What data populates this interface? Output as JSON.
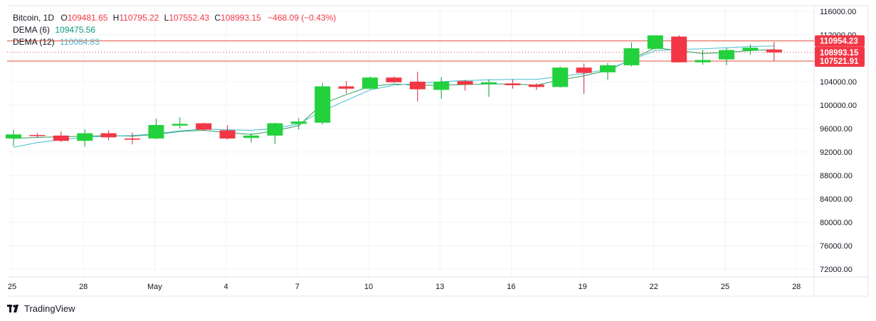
{
  "legend": {
    "symbol": "Bitcoin, 1D",
    "o_label": "O",
    "o_value": "109481.65",
    "h_label": "H",
    "h_value": "110795.22",
    "l_label": "L",
    "l_value": "107552.43",
    "c_label": "C",
    "c_value": "108993.15",
    "change": "−468.09 (−0.43%)",
    "dema6_label": "DEMA (6)",
    "dema6_value": "109475.56",
    "dema12_label": "DEMA (12)",
    "dema12_value": "110084.83"
  },
  "branding": {
    "logo_icon": "tradingview-logo-icon",
    "name": "TradingView"
  },
  "colors": {
    "up": "#22d13c",
    "down": "#f23645",
    "dema6": "#2e9c5b",
    "dema12": "#43bcd1",
    "hline": "#e0503a"
  },
  "chart_data": {
    "type": "candlestick",
    "title": "Bitcoin, 1D",
    "ylim": [
      68000,
      116000
    ],
    "y_ticks": [
      "116000.00",
      "112000.00",
      "108000.00",
      "104000.00",
      "100000.00",
      "96000.00",
      "92000.00",
      "88000.00",
      "84000.00",
      "80000.00",
      "76000.00",
      "72000.00"
    ],
    "x_ticks": [
      "25",
      "28",
      "May",
      "4",
      "7",
      "10",
      "13",
      "16",
      "19",
      "22",
      "25",
      "28"
    ],
    "x_tick_day_index": [
      0,
      3,
      6,
      9,
      12,
      15,
      18,
      21,
      24,
      27,
      30,
      33
    ],
    "price_labels": [
      "110954.23",
      "108993.15",
      "107521.91"
    ],
    "horizontal_lines": [
      110954.23,
      107521.91
    ],
    "last_price_line": 108993.15,
    "candles": [
      {
        "o": 94300,
        "h": 95800,
        "l": 93000,
        "c": 95000
      },
      {
        "o": 94900,
        "h": 95200,
        "l": 94400,
        "c": 94800
      },
      {
        "o": 94800,
        "h": 95500,
        "l": 93700,
        "c": 93900
      },
      {
        "o": 93900,
        "h": 95900,
        "l": 92900,
        "c": 95200
      },
      {
        "o": 95200,
        "h": 95700,
        "l": 94000,
        "c": 94500
      },
      {
        "o": 94300,
        "h": 95300,
        "l": 93300,
        "c": 94100
      },
      {
        "o": 94300,
        "h": 97700,
        "l": 94200,
        "c": 96600
      },
      {
        "o": 96500,
        "h": 97900,
        "l": 96000,
        "c": 96800
      },
      {
        "o": 96900,
        "h": 97000,
        "l": 95600,
        "c": 95800
      },
      {
        "o": 95700,
        "h": 96600,
        "l": 94100,
        "c": 94300
      },
      {
        "o": 94400,
        "h": 95200,
        "l": 93600,
        "c": 94800
      },
      {
        "o": 94800,
        "h": 97000,
        "l": 93400,
        "c": 96900
      },
      {
        "o": 96800,
        "h": 97800,
        "l": 95800,
        "c": 97200
      },
      {
        "o": 97000,
        "h": 103800,
        "l": 96700,
        "c": 103200
      },
      {
        "o": 103200,
        "h": 104100,
        "l": 102000,
        "c": 102800
      },
      {
        "o": 102800,
        "h": 104900,
        "l": 102700,
        "c": 104700
      },
      {
        "o": 104700,
        "h": 104900,
        "l": 103800,
        "c": 103900
      },
      {
        "o": 104000,
        "h": 105700,
        "l": 100600,
        "c": 102700
      },
      {
        "o": 102600,
        "h": 104800,
        "l": 101100,
        "c": 104000
      },
      {
        "o": 104100,
        "h": 104300,
        "l": 102500,
        "c": 103500
      },
      {
        "o": 103600,
        "h": 104400,
        "l": 101400,
        "c": 103900
      },
      {
        "o": 103700,
        "h": 104400,
        "l": 102800,
        "c": 103400
      },
      {
        "o": 103500,
        "h": 103700,
        "l": 102600,
        "c": 103100
      },
      {
        "o": 103100,
        "h": 106600,
        "l": 103000,
        "c": 106400
      },
      {
        "o": 106400,
        "h": 107100,
        "l": 101900,
        "c": 105500
      },
      {
        "o": 105600,
        "h": 107200,
        "l": 104300,
        "c": 106800
      },
      {
        "o": 106800,
        "h": 110700,
        "l": 106600,
        "c": 109700
      },
      {
        "o": 109600,
        "h": 111900,
        "l": 109500,
        "c": 111900
      },
      {
        "o": 111700,
        "h": 111900,
        "l": 107300,
        "c": 107300
      },
      {
        "o": 107300,
        "h": 109400,
        "l": 106900,
        "c": 107700
      },
      {
        "o": 107800,
        "h": 109800,
        "l": 106800,
        "c": 109400
      },
      {
        "o": 109300,
        "h": 110400,
        "l": 108600,
        "c": 109800
      },
      {
        "o": 109481.65,
        "h": 110795.22,
        "l": 107552.43,
        "c": 108993.15
      }
    ],
    "series": [
      {
        "name": "DEMA (6)",
        "values": [
          94300,
          94500,
          94600,
          94700,
          94800,
          94700,
          95000,
          95500,
          95700,
          95300,
          95000,
          95600,
          96500,
          100200,
          101800,
          103200,
          103600,
          103400,
          103400,
          103500,
          103600,
          103600,
          103400,
          104300,
          105000,
          105900,
          107800,
          109800,
          109300,
          108800,
          109000,
          109300,
          109475.56
        ]
      },
      {
        "name": "DEMA (12)",
        "values": [
          92800,
          93600,
          94100,
          94500,
          94700,
          94800,
          95100,
          95600,
          95900,
          95800,
          95700,
          96000,
          96800,
          99000,
          100800,
          102600,
          103400,
          103700,
          104000,
          104200,
          104300,
          104400,
          104400,
          104900,
          105400,
          106100,
          107700,
          109300,
          109500,
          109600,
          109800,
          110000,
          110084.83
        ]
      }
    ]
  }
}
